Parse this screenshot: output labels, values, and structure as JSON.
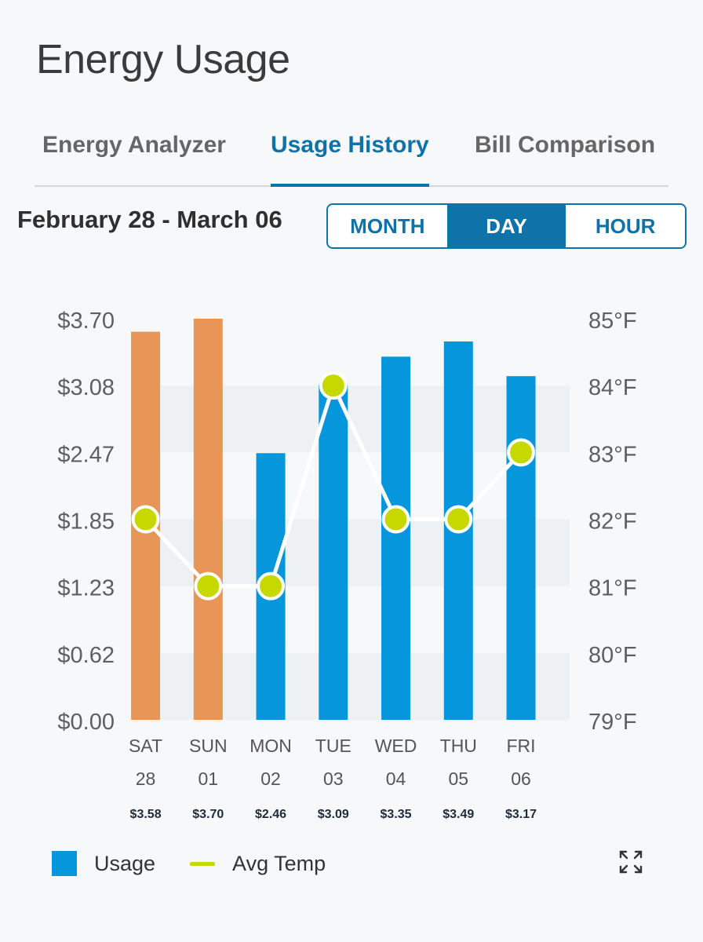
{
  "header": {
    "title": "Energy Usage"
  },
  "tabs": [
    {
      "label": "Energy Analyzer"
    },
    {
      "label": "Usage History"
    },
    {
      "label": "Bill Comparison"
    }
  ],
  "range": {
    "label": "February 28 - March 06"
  },
  "period_toggle": {
    "options": [
      "MONTH",
      "DAY",
      "HOUR"
    ],
    "selected": "DAY"
  },
  "legend": {
    "usage": "Usage",
    "avg_temp": "Avg Temp"
  },
  "colors": {
    "weekend_bar": "#e89558",
    "weekday_bar": "#0596dc",
    "temp_marker": "#c6d800",
    "accent": "#0f72a8"
  },
  "chart_data": {
    "type": "bar",
    "title": "",
    "categories": [
      "SAT 28",
      "SUN 01",
      "MON 02",
      "TUE 03",
      "WED 04",
      "THU 05",
      "FRI 06"
    ],
    "day_names": [
      "SAT",
      "SUN",
      "MON",
      "TUE",
      "WED",
      "THU",
      "FRI"
    ],
    "day_numbers": [
      "28",
      "01",
      "02",
      "03",
      "04",
      "05",
      "06"
    ],
    "cost_labels": [
      "$3.58",
      "$3.70",
      "$2.46",
      "$3.09",
      "$3.35",
      "$3.49",
      "$3.17"
    ],
    "series": [
      {
        "name": "Usage",
        "type": "bar",
        "values": [
          3.58,
          3.7,
          2.46,
          3.09,
          3.35,
          3.49,
          3.17
        ]
      },
      {
        "name": "Avg Temp",
        "type": "line",
        "values": [
          82,
          81,
          81,
          84,
          82,
          82,
          83
        ]
      }
    ],
    "weekend": [
      true,
      true,
      false,
      false,
      false,
      false,
      false
    ],
    "left_axis": {
      "ticks": [
        "$0.00",
        "$0.62",
        "$1.23",
        "$1.85",
        "$2.47",
        "$3.08",
        "$3.70"
      ],
      "ylim": [
        0,
        3.7
      ]
    },
    "right_axis": {
      "ticks": [
        "79°F",
        "80°F",
        "81°F",
        "82°F",
        "83°F",
        "84°F",
        "85°F"
      ],
      "ylim": [
        79,
        85
      ]
    }
  }
}
